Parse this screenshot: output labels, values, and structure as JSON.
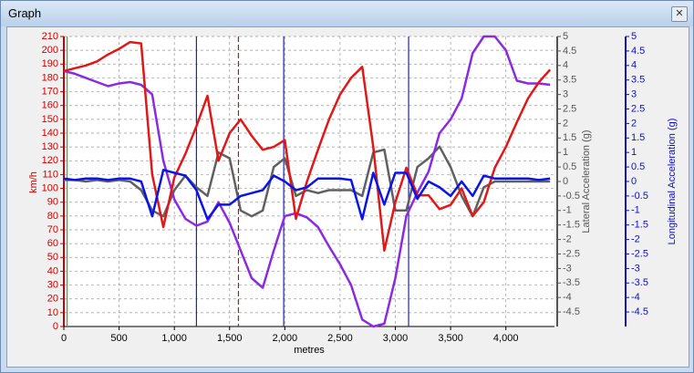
{
  "window": {
    "title": "Graph"
  },
  "chart_data": {
    "type": "line",
    "x_label": "metres",
    "y_label": "km/h",
    "y2_label": "Lateral Acceleration (g)",
    "y3_label": "Longitudinal Acceleration (g)",
    "x": [
      0,
      100,
      200,
      300,
      400,
      500,
      600,
      700,
      800,
      900,
      1000,
      1100,
      1200,
      1300,
      1400,
      1500,
      1600,
      1700,
      1800,
      1900,
      2000,
      2100,
      2200,
      2300,
      2400,
      2500,
      2600,
      2700,
      2800,
      2900,
      3000,
      3100,
      3200,
      3300,
      3400,
      3500,
      3600,
      3700,
      3800,
      3900,
      4000,
      4100,
      4200,
      4300,
      4400
    ],
    "series": [
      {
        "color": "#e01818",
        "values": [
          185,
          187,
          189,
          192,
          197,
          201,
          206,
          205,
          110,
          72,
          108,
          125,
          145,
          167,
          120,
          140,
          150,
          138,
          128,
          130,
          135,
          78,
          105,
          128,
          150,
          168,
          180,
          188,
          130,
          55,
          90,
          115,
          95,
          95,
          85,
          88,
          100,
          80,
          90,
          115,
          130,
          148,
          165,
          177,
          186
        ]
      },
      {
        "color": "#8a2be2",
        "values": [
          185,
          183,
          180,
          177,
          174,
          176,
          177,
          175,
          168,
          120,
          92,
          78,
          73,
          76,
          90,
          75,
          55,
          35,
          28,
          55,
          80,
          82,
          79,
          72,
          58,
          45,
          30,
          5,
          0,
          2,
          35,
          80,
          97,
          112,
          140,
          150,
          165,
          198,
          210,
          210,
          200,
          178,
          176,
          176,
          175
        ]
      },
      {
        "color": "#606060",
        "axis": "y2",
        "values": [
          0.05,
          0.05,
          0,
          0.05,
          0,
          0.05,
          0,
          -0.3,
          -1,
          -1.2,
          -0.3,
          0.2,
          -0.2,
          -0.5,
          1,
          0.8,
          -1,
          -1.2,
          -1,
          0.5,
          0.8,
          -0.5,
          -0.3,
          -0.4,
          -0.3,
          -0.3,
          -0.3,
          -0.5,
          1,
          1.1,
          -1,
          -1,
          0.5,
          0.8,
          1.2,
          0.5,
          -0.5,
          -1.2,
          -0.2,
          0,
          0,
          0,
          0,
          0,
          0
        ]
      },
      {
        "color": "#0a14e6",
        "axis": "y3",
        "values": [
          0.1,
          0.05,
          0.1,
          0.1,
          0.05,
          0.1,
          0.1,
          0,
          -1.2,
          0.4,
          0.3,
          0.2,
          -0.3,
          -1.3,
          -0.8,
          -0.8,
          -0.5,
          -0.4,
          -0.3,
          0.2,
          0,
          -0.3,
          -0.2,
          0.1,
          0.1,
          0.1,
          0.05,
          -1.3,
          0.3,
          -0.8,
          0.3,
          0.3,
          -0.6,
          0,
          -0.2,
          -0.5,
          0,
          -0.5,
          0.2,
          0.1,
          0.1,
          0.1,
          0.1,
          0.05,
          0.1
        ]
      }
    ],
    "markers": [
      {
        "x": 30,
        "color": "#20c020"
      },
      {
        "x": 1200,
        "color": "#2020c0"
      },
      {
        "x": 1580,
        "color": "#a02020",
        "style": "dashed"
      },
      {
        "x": 1990,
        "color": "#2020c0"
      },
      {
        "x": 3120,
        "color": "#2020c0"
      }
    ],
    "xlim": [
      0,
      4440
    ],
    "xticks": [
      0,
      500,
      {
        "value": 1000,
        "label": "1,000"
      },
      {
        "value": 1500,
        "label": "1,500"
      },
      {
        "value": 2000,
        "label": "2,000"
      },
      {
        "value": 2500,
        "label": "2,500"
      },
      {
        "value": 3000,
        "label": "3,000"
      },
      {
        "value": 3500,
        "label": "3,500"
      },
      {
        "value": 4000,
        "label": "4,000"
      }
    ],
    "ylim": [
      0,
      210
    ],
    "yticks": [
      0,
      10,
      20,
      30,
      40,
      50,
      60,
      70,
      80,
      90,
      100,
      110,
      120,
      130,
      140,
      150,
      160,
      170,
      180,
      190,
      200,
      210
    ],
    "y2lim": [
      -5,
      5
    ],
    "y2ticks": [
      5,
      4.5,
      4,
      3.5,
      3,
      2.5,
      2,
      1.5,
      1,
      0.5,
      0,
      -0.5,
      -1,
      -1.5,
      -2,
      -2.5,
      -3,
      -3.5,
      -4,
      -4.5
    ],
    "y3lim": [
      -5,
      5
    ],
    "y3ticks": [
      5,
      4.5,
      4,
      3.5,
      3,
      2.5,
      2,
      1.5,
      1,
      0.5,
      0,
      -0.5,
      -1,
      -1.5,
      -2,
      -2.5,
      -3,
      -3.5,
      -4,
      -4.5
    ],
    "grid": true
  }
}
